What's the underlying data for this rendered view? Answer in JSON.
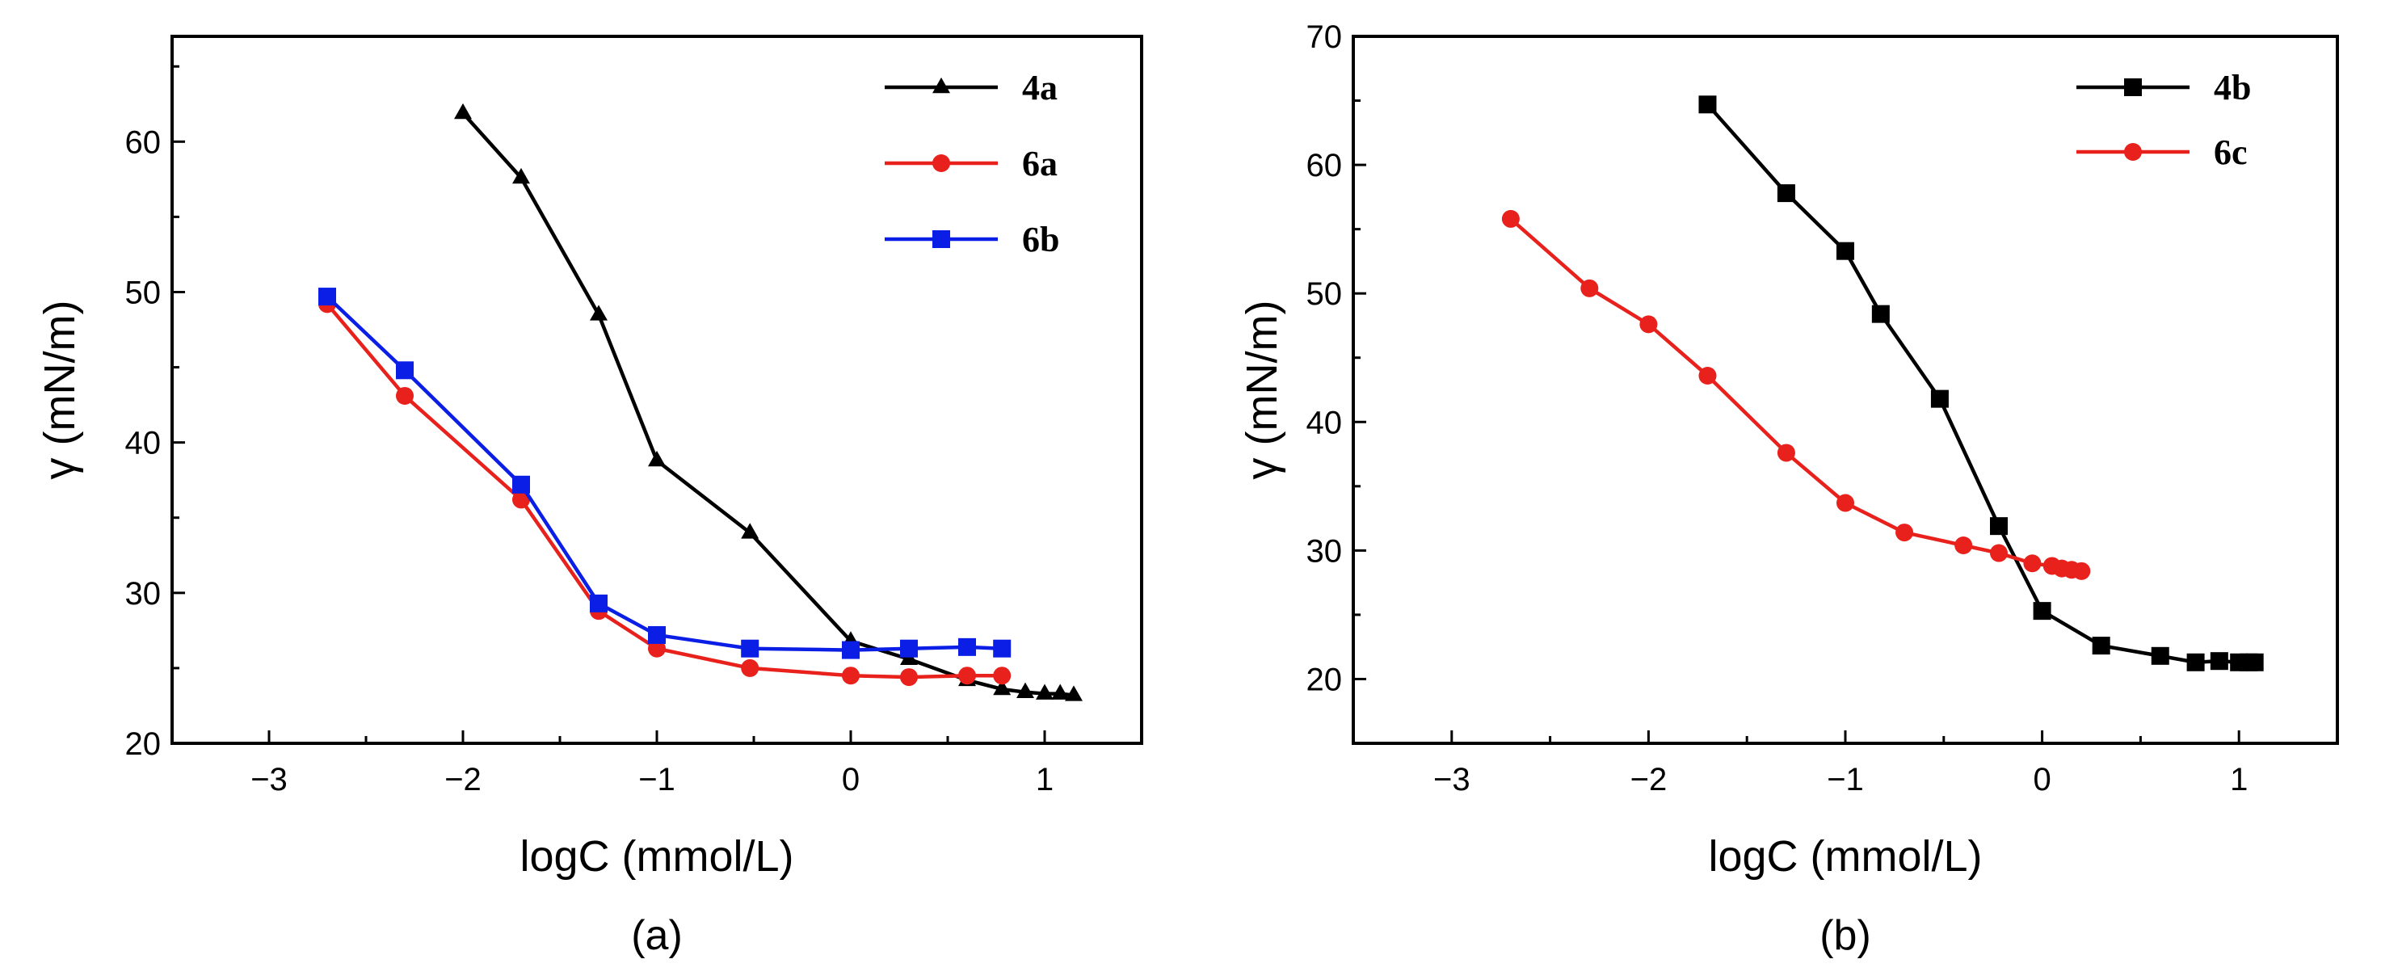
{
  "chart_data": [
    {
      "type": "line",
      "panel_label": "(a)",
      "xlabel": "logC (mmol/L)",
      "ylabel": "γ (mN/m)",
      "xlim": [
        -3.5,
        1.5
      ],
      "ylim": [
        20,
        67
      ],
      "xticks": [
        -3,
        -2,
        -1,
        0,
        1
      ],
      "xtick_labels": [
        "−3",
        "−2",
        "−1",
        "0",
        "1"
      ],
      "yticks": [
        20,
        30,
        40,
        50,
        60
      ],
      "ytick_labels": [
        "20",
        "30",
        "40",
        "50",
        "60"
      ],
      "legend_position": "top-right",
      "series": [
        {
          "name": "4a",
          "color": "#000000",
          "marker": "triangle",
          "x": [
            -2.0,
            -1.7,
            -1.3,
            -1.0,
            -0.52,
            0.0,
            0.3,
            0.6,
            0.78,
            0.9,
            1.0,
            1.08,
            1.15
          ],
          "y": [
            61.9,
            57.6,
            48.5,
            38.8,
            34.0,
            26.8,
            25.6,
            24.2,
            23.6,
            23.4,
            23.3,
            23.3,
            23.2
          ]
        },
        {
          "name": "6a",
          "color": "#e8211c",
          "marker": "circle",
          "x": [
            -2.7,
            -2.3,
            -1.7,
            -1.3,
            -1.0,
            -0.52,
            0.0,
            0.3,
            0.6,
            0.78
          ],
          "y": [
            49.2,
            43.1,
            36.2,
            28.8,
            26.3,
            25.0,
            24.5,
            24.4,
            24.5,
            24.5
          ]
        },
        {
          "name": "6b",
          "color": "#0a1ee6",
          "marker": "square",
          "x": [
            -2.7,
            -2.3,
            -1.7,
            -1.3,
            -1.0,
            -0.52,
            0.0,
            0.3,
            0.6,
            0.78
          ],
          "y": [
            49.7,
            44.8,
            37.2,
            29.3,
            27.2,
            26.3,
            26.2,
            26.3,
            26.4,
            26.3
          ]
        }
      ]
    },
    {
      "type": "line",
      "panel_label": "(b)",
      "xlabel": "logC (mmol/L)",
      "ylabel": "γ (mN/m)",
      "xlim": [
        -3.5,
        1.5
      ],
      "ylim": [
        15,
        70
      ],
      "xticks": [
        -3,
        -2,
        -1,
        0,
        1
      ],
      "xtick_labels": [
        "−3",
        "−2",
        "−1",
        "0",
        "1"
      ],
      "yticks": [
        20,
        30,
        40,
        50,
        60,
        70
      ],
      "ytick_labels": [
        "20",
        "30",
        "40",
        "50",
        "60",
        "70"
      ],
      "legend_position": "top-right",
      "series": [
        {
          "name": "4b",
          "color": "#000000",
          "marker": "square",
          "x": [
            -1.7,
            -1.3,
            -1.0,
            -0.82,
            -0.52,
            -0.22,
            0.0,
            0.3,
            0.6,
            0.78,
            0.9,
            1.0,
            1.05,
            1.08
          ],
          "y": [
            64.7,
            57.8,
            53.3,
            48.4,
            41.8,
            31.9,
            25.3,
            22.6,
            21.8,
            21.3,
            21.4,
            21.3,
            21.3,
            21.3
          ]
        },
        {
          "name": "6c",
          "color": "#e8211c",
          "marker": "circle",
          "x": [
            -2.7,
            -2.3,
            -2.0,
            -1.7,
            -1.3,
            -1.0,
            -0.7,
            -0.4,
            -0.22,
            -0.05,
            0.05,
            0.1,
            0.15,
            0.2
          ],
          "y": [
            55.8,
            50.4,
            47.6,
            43.6,
            37.6,
            33.7,
            31.4,
            30.4,
            29.8,
            29.0,
            28.8,
            28.6,
            28.5,
            28.4
          ]
        }
      ]
    }
  ]
}
